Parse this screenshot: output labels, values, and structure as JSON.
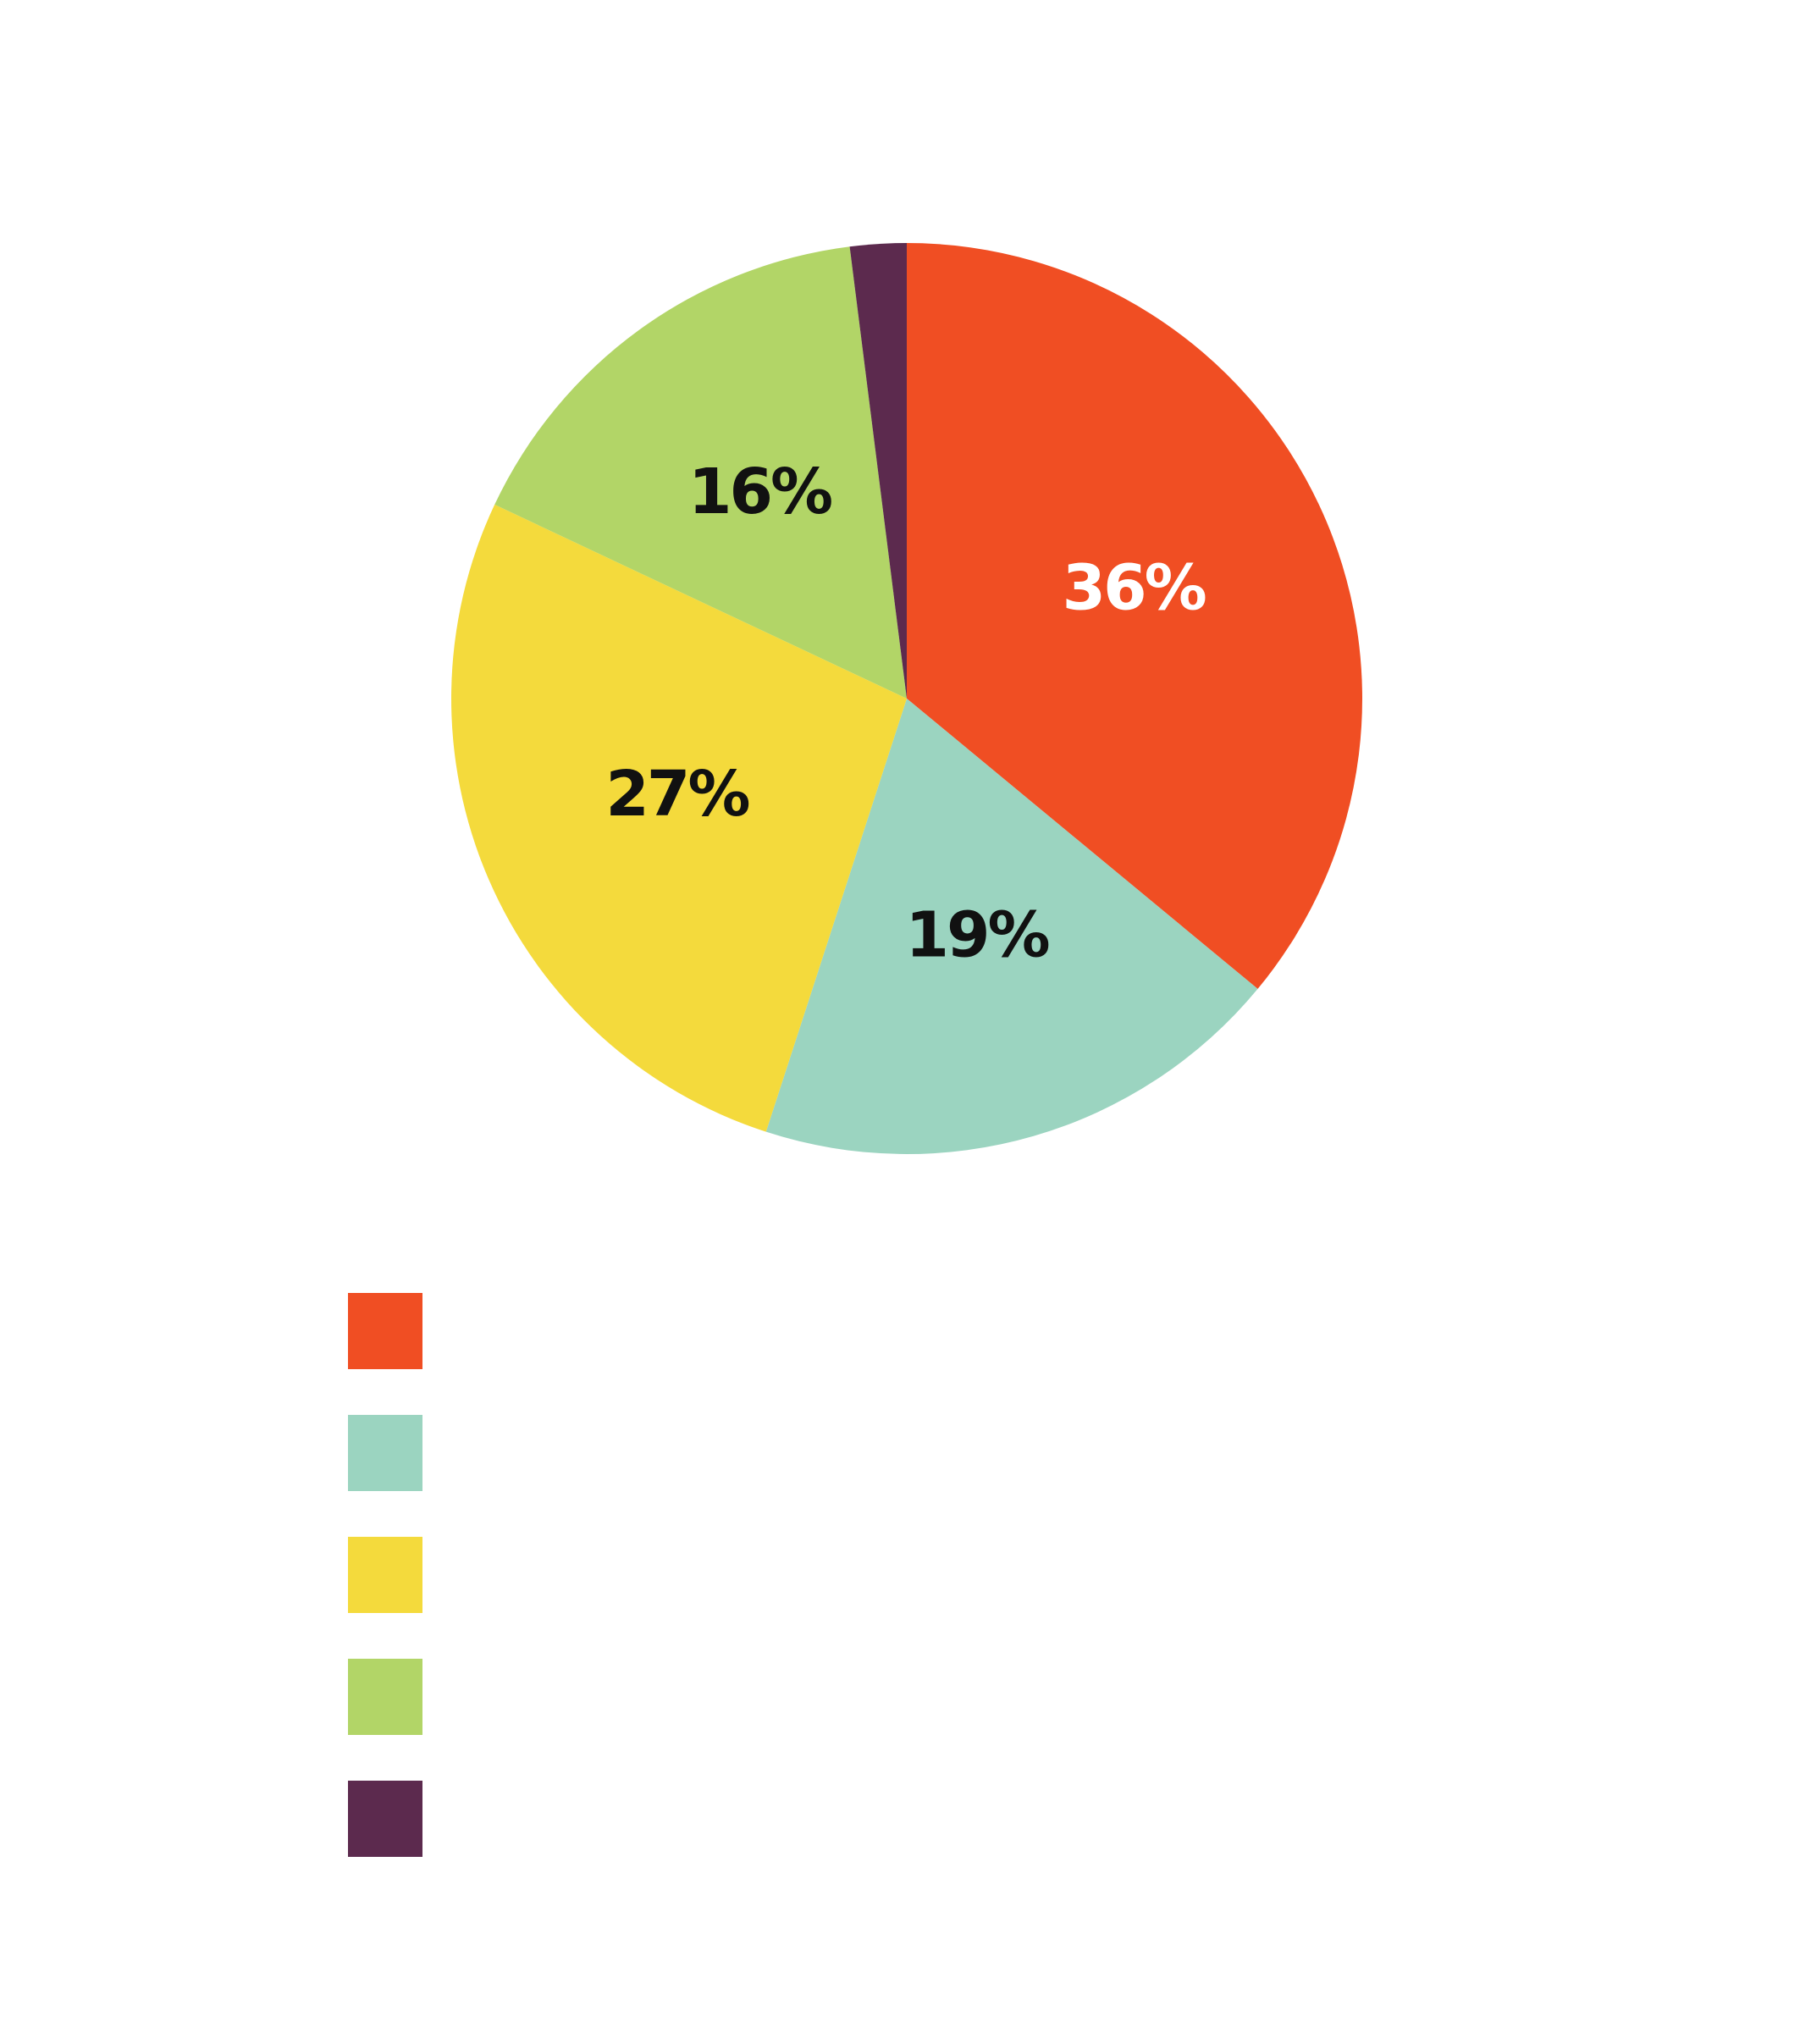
{
  "chart_data": {
    "type": "pie",
    "values": [
      36,
      19,
      27,
      16,
      2
    ],
    "value_labels": [
      "36%",
      "19%",
      "27%",
      "16%",
      null
    ],
    "colors": [
      "#f04e23",
      "#9bd4c0",
      "#f4da3c",
      "#b2d567",
      "#5c2a4e"
    ],
    "start_angle": 0,
    "direction": "clockwise"
  }
}
